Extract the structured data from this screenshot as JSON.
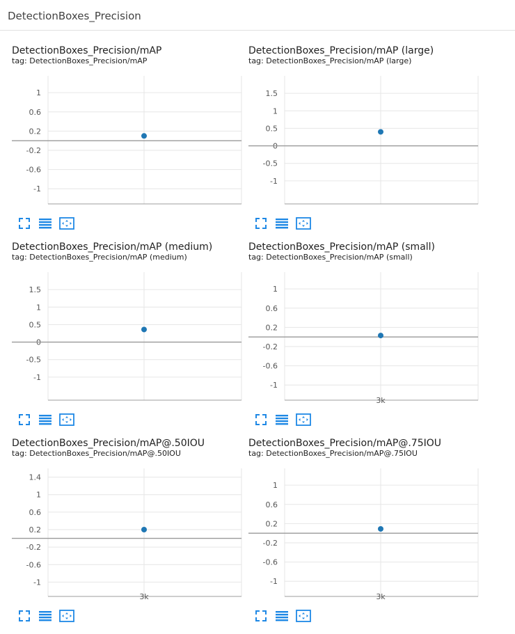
{
  "section": {
    "title": "DetectionBoxes_Precision"
  },
  "colors": {
    "point": "#1f77b4",
    "grid": "#e6e6e6",
    "axis": "#9e9e9e",
    "zero_line": "#999999",
    "tick_text": "#555555",
    "icon": "#1e88e5"
  },
  "icons": {
    "fullscreen": "expand-icon",
    "data": "list-lines-icon",
    "fit": "fit-domain-icon"
  },
  "chart_data": [
    {
      "type": "scatter",
      "title": "DetectionBoxes_Precision/mAP",
      "tag": "tag: DetectionBoxes_Precision/mAP",
      "yticks": [
        1,
        0.6,
        0.2,
        -0.2,
        -0.6,
        -1
      ],
      "ytick_labels": [
        "1",
        "0.6",
        "0.2",
        "-0.2",
        "-0.6",
        "-1"
      ],
      "ylim": [
        -1.2,
        1.35
      ],
      "xtick_labels": [],
      "points": [
        {
          "y": 0.1
        }
      ]
    },
    {
      "type": "scatter",
      "title": "DetectionBoxes_Precision/mAP (large)",
      "tag": "tag: DetectionBoxes_Precision/mAP (large)",
      "yticks": [
        1.5,
        1,
        0.5,
        0,
        -0.5,
        -1
      ],
      "ytick_labels": [
        "1.5",
        "1",
        "0.5",
        "0",
        "-0.5",
        "-1"
      ],
      "ylim": [
        -1.5,
        2.0
      ],
      "xtick_labels": [],
      "points": [
        {
          "y": 0.4
        }
      ]
    },
    {
      "type": "scatter",
      "title": "DetectionBoxes_Precision/mAP (medium)",
      "tag": "tag: DetectionBoxes_Precision/mAP (medium)",
      "yticks": [
        1.5,
        1,
        0.5,
        0,
        -0.5,
        -1
      ],
      "ytick_labels": [
        "1.5",
        "1",
        "0.5",
        "0",
        "-0.5",
        "-1"
      ],
      "ylim": [
        -1.5,
        2.0
      ],
      "xtick_labels": [],
      "points": [
        {
          "y": 0.36
        }
      ]
    },
    {
      "type": "scatter",
      "title": "DetectionBoxes_Precision/mAP (small)",
      "tag": "tag: DetectionBoxes_Precision/mAP (small)",
      "yticks": [
        1,
        0.6,
        0.2,
        -0.2,
        -0.6,
        -1
      ],
      "ytick_labels": [
        "1",
        "0.6",
        "0.2",
        "-0.2",
        "-0.6",
        "-1"
      ],
      "ylim": [
        -1.2,
        1.35
      ],
      "xtick_labels": [
        "3k"
      ],
      "points": [
        {
          "y": 0.03
        }
      ]
    },
    {
      "type": "scatter",
      "title": "DetectionBoxes_Precision/mAP@.50IOU",
      "tag": "tag: DetectionBoxes_Precision/mAP@.50IOU",
      "yticks": [
        1.4,
        1,
        0.6,
        0.2,
        -0.2,
        -0.6,
        -1
      ],
      "ytick_labels": [
        "1.4",
        "1",
        "0.6",
        "0.2",
        "-0.2",
        "-0.6",
        "-1"
      ],
      "ylim": [
        -1.2,
        1.6
      ],
      "xtick_labels": [
        "3k"
      ],
      "points": [
        {
          "y": 0.2
        }
      ]
    },
    {
      "type": "scatter",
      "title": "DetectionBoxes_Precision/mAP@.75IOU",
      "tag": "tag: DetectionBoxes_Precision/mAP@.75IOU",
      "yticks": [
        1,
        0.6,
        0.2,
        -0.2,
        -0.6,
        -1
      ],
      "ytick_labels": [
        "1",
        "0.6",
        "0.2",
        "-0.2",
        "-0.6",
        "-1"
      ],
      "ylim": [
        -1.2,
        1.35
      ],
      "xtick_labels": [
        "3k"
      ],
      "points": [
        {
          "y": 0.09
        }
      ]
    }
  ]
}
